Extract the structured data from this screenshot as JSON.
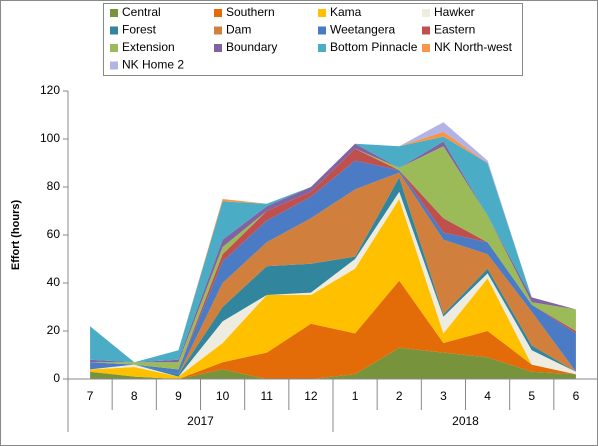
{
  "chart_data": {
    "type": "stacked-area",
    "y_label": "Effort  (hours)",
    "category_groups": [
      {
        "name": "2017",
        "categories": [
          "7",
          "8",
          "9",
          "10",
          "11",
          "12"
        ]
      },
      {
        "name": "2018",
        "categories": [
          "1",
          "2",
          "3",
          "4",
          "5",
          "6"
        ]
      }
    ],
    "ylim": [
      0,
      120
    ],
    "yticks": [
      0,
      20,
      40,
      60,
      80,
      100,
      120
    ],
    "grid": false,
    "legend": "top",
    "series": [
      {
        "name": "Central",
        "color": "#77933c",
        "values": [
          3,
          1,
          0,
          4,
          0,
          0,
          2,
          13,
          11,
          9,
          3,
          2
        ]
      },
      {
        "name": "Southern",
        "color": "#e36c09",
        "values": [
          0,
          0,
          0,
          3,
          11,
          23,
          17,
          28,
          4,
          11,
          3,
          0
        ]
      },
      {
        "name": "Kama",
        "color": "#ffc000",
        "values": [
          1,
          4,
          1,
          8,
          24,
          12,
          27,
          34,
          4,
          22,
          0,
          0
        ]
      },
      {
        "name": "Hawker",
        "color": "#eeece1",
        "values": [
          0,
          1,
          0,
          9,
          0,
          1,
          4,
          3,
          7,
          2,
          6,
          1
        ]
      },
      {
        "name": "Forest",
        "color": "#31859c",
        "values": [
          0,
          0,
          1,
          6,
          12,
          12,
          1,
          6,
          1,
          2,
          2,
          0
        ]
      },
      {
        "name": "Dam",
        "color": "#d0803c",
        "values": [
          0,
          0,
          0,
          10,
          10,
          19,
          28,
          2,
          31,
          6,
          14,
          0
        ]
      },
      {
        "name": "Weetangera",
        "color": "#4a7bc4",
        "values": [
          3,
          0,
          2,
          9,
          9,
          9,
          12,
          1,
          3,
          5,
          3,
          16
        ]
      },
      {
        "name": "Eastern",
        "color": "#c0504d",
        "values": [
          0,
          0,
          0,
          3,
          4,
          2,
          5,
          0,
          6,
          0,
          0,
          1
        ]
      },
      {
        "name": "Extension",
        "color": "#9bbb59",
        "values": [
          0,
          1,
          3,
          3,
          0,
          0,
          0,
          1,
          30,
          11,
          1,
          9
        ]
      },
      {
        "name": "Boundary",
        "color": "#8064a2",
        "values": [
          1,
          0,
          1,
          3,
          2,
          2,
          2,
          0,
          2,
          0,
          2,
          0
        ]
      },
      {
        "name": "Bottom Pinnacle",
        "color": "#4bacc6",
        "values": [
          14,
          0,
          4,
          16,
          1,
          0,
          0,
          9,
          2,
          22,
          0,
          0
        ]
      },
      {
        "name": "NK North-west",
        "color": "#f79646",
        "values": [
          0,
          0,
          0,
          1,
          0,
          0,
          0,
          0,
          2,
          0,
          0,
          0
        ]
      },
      {
        "name": "NK Home 2",
        "color": "#b3b3e6",
        "values": [
          0,
          0,
          0,
          0,
          0,
          0,
          0,
          0,
          4,
          1,
          0,
          0
        ]
      }
    ]
  }
}
